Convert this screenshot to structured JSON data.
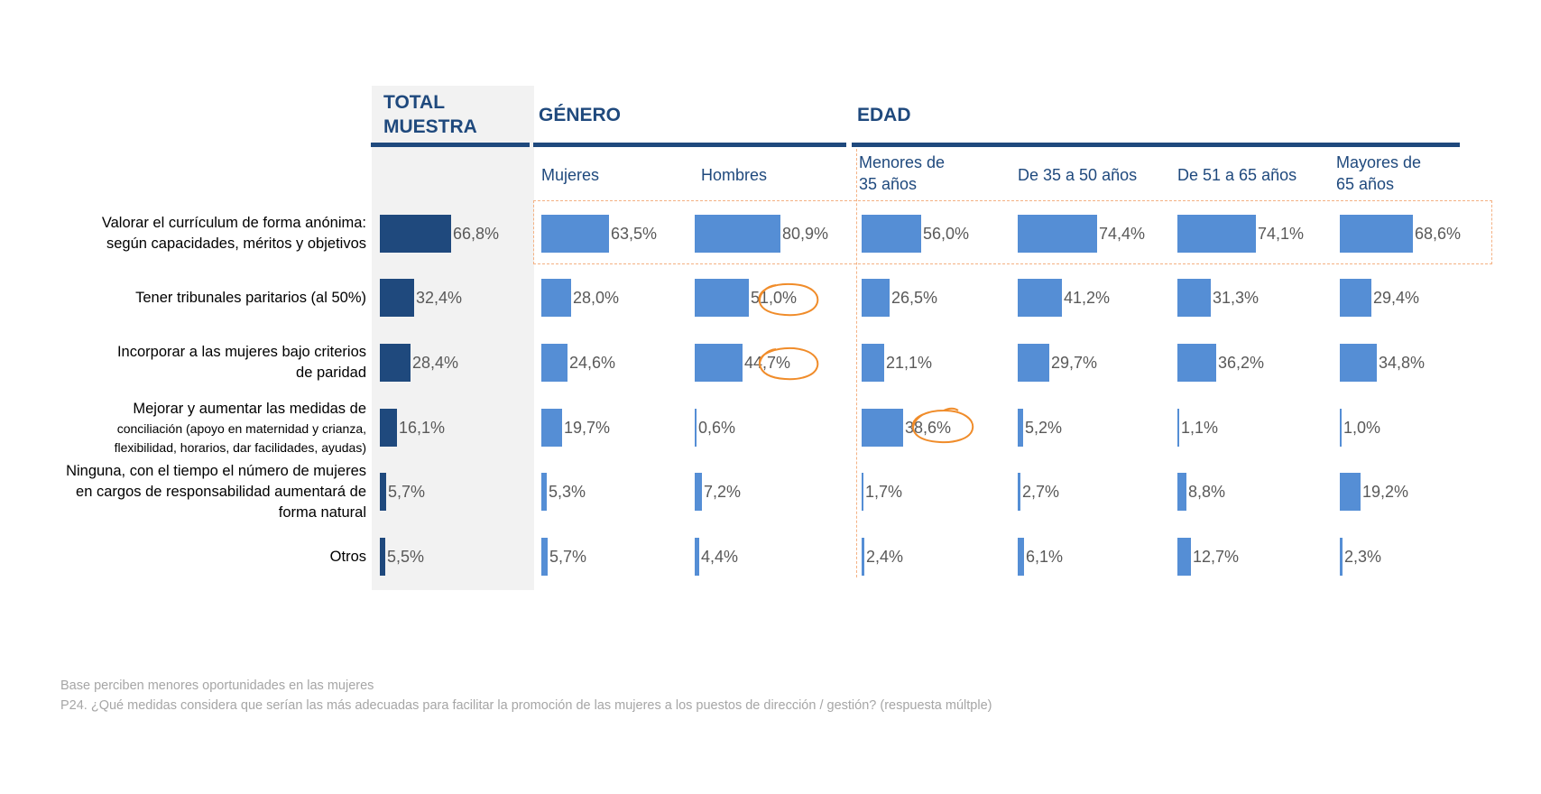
{
  "groups": {
    "total": [
      "TOTAL",
      "MUESTRA"
    ],
    "genero": "GÉNERO",
    "edad": "EDAD"
  },
  "columns": [
    {
      "key": "total",
      "label": []
    },
    {
      "key": "mujeres",
      "label": [
        "Mujeres"
      ]
    },
    {
      "key": "hombres",
      "label": [
        "Hombres"
      ]
    },
    {
      "key": "menores35",
      "label": [
        "Menores de",
        "35 años"
      ]
    },
    {
      "key": "de35a50",
      "label": [
        "De 35 a 50 años"
      ]
    },
    {
      "key": "de51a65",
      "label": [
        "De 51 a 65 años"
      ]
    },
    {
      "key": "mayores65",
      "label": [
        "Mayores de",
        " 65 años"
      ]
    }
  ],
  "rows": [
    {
      "label": [
        "Valorar el currículum de forma anónima:",
        "según capacidades, méritos y objetivos"
      ],
      "small": []
    },
    {
      "label": [
        "Tener tribunales paritarios (al 50%)"
      ],
      "small": []
    },
    {
      "label": [
        "Incorporar a las mujeres bajo criterios",
        "de paridad"
      ],
      "small": []
    },
    {
      "label": [
        "Mejorar y aumentar las medidas de"
      ],
      "small": [
        "conciliación (apoyo en maternidad y crianza,",
        "flexibilidad, horarios, dar facilidades, ayudas)"
      ]
    },
    {
      "label": [
        "Ninguna, con el tiempo el número de mujeres",
        "en cargos de responsabilidad aumentará de",
        "forma natural"
      ],
      "small": []
    },
    {
      "label": [
        "Otros"
      ],
      "small": []
    }
  ],
  "chart_data": {
    "type": "bar",
    "orientation": "horizontal",
    "categories": [
      "Valorar el currículum de forma anónima: según capacidades, méritos y objetivos",
      "Tener tribunales paritarios (al 50%)",
      "Incorporar a las mujeres bajo criterios de paridad",
      "Mejorar y aumentar las medidas de conciliación (apoyo en maternidad y crianza, flexibilidad, horarios, dar facilidades, ayudas)",
      "Ninguna, con el tiempo el número de mujeres en cargos de responsabilidad aumentará de forma natural",
      "Otros"
    ],
    "series": [
      {
        "name": "TOTAL MUESTRA",
        "values": [
          66.8,
          32.4,
          28.4,
          16.1,
          5.7,
          5.5
        ],
        "labels": [
          "66,8%",
          "32,4%",
          "28,4%",
          "16,1%",
          "5,7%",
          "5,5%"
        ]
      },
      {
        "name": "Mujeres",
        "values": [
          63.5,
          28.0,
          24.6,
          19.7,
          5.3,
          5.7
        ],
        "labels": [
          "63,5%",
          "28,0%",
          "24,6%",
          "19,7%",
          "5,3%",
          "5,7%"
        ]
      },
      {
        "name": "Hombres",
        "values": [
          80.9,
          51.0,
          44.7,
          0.6,
          7.2,
          4.4
        ],
        "labels": [
          "80,9%",
          "51,0%",
          "44,7%",
          "0,6%",
          "7,2%",
          "4,4%"
        ]
      },
      {
        "name": "Menores de 35 años",
        "values": [
          56.0,
          26.5,
          21.1,
          38.6,
          1.7,
          2.4
        ],
        "labels": [
          "56,0%",
          "26,5%",
          "21,1%",
          "38,6%",
          "1,7%",
          "2,4%"
        ]
      },
      {
        "name": "De 35 a 50 años",
        "values": [
          74.4,
          41.2,
          29.7,
          5.2,
          2.7,
          6.1
        ],
        "labels": [
          "74,4%",
          "41,2%",
          "29,7%",
          "5,2%",
          "2,7%",
          "6,1%"
        ]
      },
      {
        "name": "De 51 a 65 años",
        "values": [
          74.1,
          31.3,
          36.2,
          1.1,
          8.8,
          12.7
        ],
        "labels": [
          "74,1%",
          "31,3%",
          "36,2%",
          "1,1%",
          "8,8%",
          "12,7%"
        ]
      },
      {
        "name": "Mayores de 65 años",
        "values": [
          68.6,
          29.4,
          34.8,
          1.0,
          19.2,
          2.3
        ],
        "labels": [
          "68,6%",
          "29,4%",
          "34,8%",
          "1,0%",
          "19,2%",
          "2,3%"
        ]
      }
    ],
    "highlighted": [
      {
        "series": "Hombres",
        "category_index": 1
      },
      {
        "series": "Hombres",
        "category_index": 2
      },
      {
        "series": "Menores de 35 años",
        "category_index": 3
      }
    ],
    "highlighted_row": 0,
    "xlim": [
      0,
      100
    ],
    "grid": false,
    "legend": "none"
  },
  "colors": {
    "total_bar": "#1f497d",
    "segment_bar": "#558ed5",
    "header": "#1f497d",
    "highlight": "#f08c2a",
    "total_background": "#f2f2f2"
  },
  "footnotes": [
    "Base perciben menores oportunidades en las mujeres",
    "P24. ¿Qué medidas considera que serían las más adecuadas para facilitar la promoción de las mujeres a los puestos de dirección / gestión? (respuesta múltple)"
  ]
}
